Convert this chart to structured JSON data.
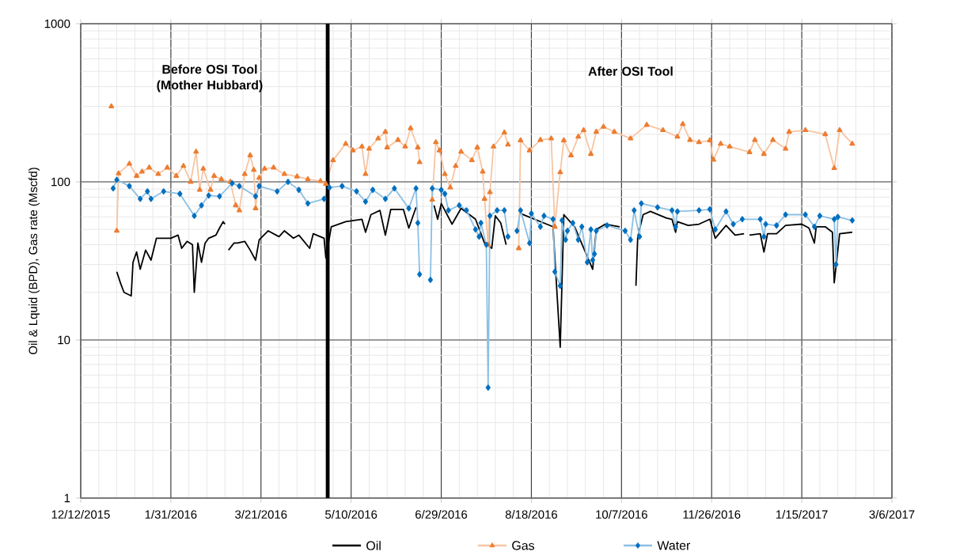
{
  "chart_data": {
    "type": "line",
    "ylabel": "Oil & Lquid (BPD), Gas rate (Mscfd)",
    "log": "y",
    "grid": true,
    "legend": "bottom",
    "xlim": [
      "2015-12-12",
      "2017-03-06"
    ],
    "xticks": [
      {
        "value": "2015-12-12",
        "label": "12/12/2015"
      },
      {
        "value": "2016-01-31",
        "label": "1/31/2016"
      },
      {
        "value": "2016-03-21",
        "label": "3/21/2016"
      },
      {
        "value": "2016-05-10",
        "label": "5/10/2016"
      },
      {
        "value": "2016-06-29",
        "label": "6/29/2016"
      },
      {
        "value": "2016-08-18",
        "label": "8/18/2016"
      },
      {
        "value": "2016-10-07",
        "label": "10/7/2016"
      },
      {
        "value": "2016-11-26",
        "label": "11/26/2016"
      },
      {
        "value": "2017-01-15",
        "label": "1/15/2017"
      },
      {
        "value": "2017-03-06",
        "label": "3/6/2017"
      }
    ],
    "ylim": [
      1,
      1000
    ],
    "yticks": [
      1,
      10,
      100,
      1000
    ],
    "ref_lines": [
      {
        "axis": "x",
        "value": "2016-04-27",
        "color": "#000000"
      }
    ],
    "annotations": [
      "Before OSI Tool (Mother Hubbard)",
      "After OSI Tool"
    ],
    "series": [
      {
        "name": "Oil",
        "color": "#000000",
        "marker": "none",
        "x": [
          "2016-01-01",
          "2016-01-03",
          "2016-01-05",
          "2016-01-09",
          "2016-01-10",
          "2016-01-12",
          "2016-01-14",
          "2016-01-17",
          "2016-01-20",
          "2016-01-23",
          "2016-01-31",
          "2016-02-04",
          "2016-02-06",
          "2016-02-09",
          "2016-02-12",
          "2016-02-13",
          "2016-02-15",
          "2016-02-17",
          "2016-02-19",
          "2016-02-21",
          "2016-02-25",
          "2016-02-27",
          "2016-02-29",
          "2016-03-01",
          "2016-03-02",
          "2016-03-03",
          "2016-03-06",
          "2016-03-08",
          "2016-03-12",
          "2016-03-15",
          "2016-03-18",
          "2016-03-20",
          "2016-03-25",
          "2016-03-31",
          "2016-04-03",
          "2016-04-08",
          "2016-04-11",
          "2016-04-17",
          "2016-04-19",
          "2016-04-25",
          "2016-04-26",
          "2016-04-29",
          "2016-05-07",
          "2016-05-16",
          "2016-05-18",
          "2016-05-21",
          "2016-05-26",
          "2016-05-29",
          "2016-06-01",
          "2016-06-08",
          "2016-06-11",
          "2016-06-15",
          "2016-06-20",
          "2016-06-25",
          "2016-06-27",
          "2016-06-29",
          "2016-07-05",
          "2016-07-10",
          "2016-07-18",
          "2016-07-23",
          "2016-07-27",
          "2016-07-29",
          "2016-08-01",
          "2016-08-04",
          "2016-08-08",
          "2016-08-12",
          "2016-08-30",
          "2016-09-03",
          "2016-09-05",
          "2016-09-11",
          "2016-09-21",
          "2016-09-23",
          "2016-09-28",
          "2016-10-06",
          "2016-10-10",
          "2016-10-15",
          "2016-10-16",
          "2016-10-19",
          "2016-10-23",
          "2016-11-01",
          "2016-11-04",
          "2016-11-06",
          "2016-11-07",
          "2016-11-13",
          "2016-11-19",
          "2016-11-25",
          "2016-11-28",
          "2016-12-04",
          "2016-12-09",
          "2016-12-14",
          "2016-12-15",
          "2016-12-17",
          "2016-12-23",
          "2016-12-25",
          "2016-12-27",
          "2017-01-01",
          "2017-01-06",
          "2017-01-15",
          "2017-01-19",
          "2017-01-22",
          "2017-01-23",
          "2017-01-28",
          "2017-02-01",
          "2017-02-02",
          "2017-02-05",
          "2017-02-12"
        ],
        "values": [
          27,
          23,
          20,
          19,
          31,
          36,
          28,
          37,
          32,
          44,
          44,
          46,
          38,
          42,
          40,
          20,
          41,
          31,
          41,
          44,
          46,
          51,
          56,
          54,
          null,
          37,
          41,
          41,
          42,
          37,
          32,
          43,
          49,
          45,
          49,
          44,
          46,
          38,
          47,
          44,
          33,
          52,
          56,
          58,
          48,
          62,
          66,
          46,
          67,
          67,
          51,
          69,
          null,
          71,
          58,
          73,
          54,
          68,
          58,
          41,
          38,
          61,
          55,
          40,
          null,
          63,
          52,
          9,
          62,
          52,
          28,
          50,
          54,
          52,
          null,
          22,
          45,
          62,
          65,
          59,
          58,
          48,
          56,
          53,
          54,
          58,
          44,
          53,
          46,
          47,
          null,
          46,
          47,
          36,
          47,
          47,
          53,
          54,
          51,
          41,
          52,
          52,
          48,
          23,
          47,
          48
        ]
      },
      {
        "name": "Gas",
        "color": "#ed7d31",
        "marker": "triangle",
        "x": [
          "2015-12-29",
          "2015-12-31",
          "2016-01-01",
          "2016-01-02",
          "2016-01-08",
          "2016-01-12",
          "2016-01-15",
          "2016-01-19",
          "2016-01-24",
          "2016-01-29",
          "2016-02-03",
          "2016-02-07",
          "2016-02-11",
          "2016-02-14",
          "2016-02-16",
          "2016-02-18",
          "2016-02-22",
          "2016-02-24",
          "2016-02-28",
          "2016-03-04",
          "2016-03-07",
          "2016-03-09",
          "2016-03-12",
          "2016-03-15",
          "2016-03-17",
          "2016-03-18",
          "2016-03-20",
          "2016-03-23",
          "2016-03-28",
          "2016-04-03",
          "2016-04-10",
          "2016-04-16",
          "2016-04-23",
          "2016-04-26",
          "2016-04-30",
          "2016-05-07",
          "2016-05-11",
          "2016-05-16",
          "2016-05-18",
          "2016-05-20",
          "2016-05-25",
          "2016-05-29",
          "2016-05-30",
          "2016-06-05",
          "2016-06-09",
          "2016-06-12",
          "2016-06-16",
          "2016-06-17",
          "2016-06-20",
          "2016-06-24",
          "2016-06-26",
          "2016-06-28",
          "2016-07-01",
          "2016-07-04",
          "2016-07-07",
          "2016-07-10",
          "2016-07-16",
          "2016-07-19",
          "2016-07-22",
          "2016-07-23",
          "2016-07-25",
          "2016-07-26",
          "2016-07-28",
          "2016-08-03",
          "2016-08-05",
          "2016-08-08",
          "2016-08-11",
          "2016-08-12",
          "2016-08-17",
          "2016-08-23",
          "2016-08-29",
          "2016-08-31",
          "2016-09-03",
          "2016-09-05",
          "2016-09-09",
          "2016-09-13",
          "2016-09-16",
          "2016-09-20",
          "2016-09-23",
          "2016-09-27",
          "2016-10-03",
          "2016-10-12",
          "2016-10-21",
          "2016-10-30",
          "2016-11-07",
          "2016-11-10",
          "2016-11-14",
          "2016-11-19",
          "2016-11-25",
          "2016-11-27",
          "2016-12-01",
          "2016-12-06",
          "2016-12-17",
          "2016-12-20",
          "2016-12-25",
          "2016-12-30",
          "2017-01-06",
          "2017-01-08",
          "2017-01-17",
          "2017-01-28",
          "2017-02-02",
          "2017-02-05",
          "2017-02-12"
        ],
        "values": [
          300,
          null,
          49,
          113,
          130,
          109,
          116,
          123,
          112,
          123,
          109,
          126,
          100,
          155,
          89,
          121,
          89,
          109,
          104,
          100,
          71,
          66,
          112,
          147,
          119,
          68,
          106,
          121,
          123,
          112,
          108,
          104,
          101,
          97,
          137,
          174,
          158,
          167,
          112,
          162,
          188,
          207,
          165,
          184,
          167,
          218,
          165,
          133,
          null,
          77,
          178,
          158,
          112,
          92,
          126,
          155,
          137,
          165,
          116,
          78,
          40,
          86,
          167,
          205,
          172,
          null,
          38,
          183,
          158,
          184,
          188,
          52,
          115,
          183,
          147,
          193,
          212,
          150,
          207,
          223,
          207,
          188,
          229,
          212,
          193,
          232,
          184,
          178,
          183,
          138,
          174,
          167,
          154,
          184,
          150,
          184,
          162,
          207,
          212,
          200,
          122,
          212,
          174
        ]
      },
      {
        "name": "Water",
        "color": "#0070c0",
        "marker": "diamond",
        "x": [
          "2015-12-30",
          "2016-01-01",
          "2016-01-08",
          "2016-01-14",
          "2016-01-18",
          "2016-01-20",
          "2016-01-27",
          "2016-02-05",
          "2016-02-13",
          "2016-02-17",
          "2016-02-21",
          "2016-02-27",
          "2016-03-05",
          "2016-03-09",
          "2016-03-18",
          "2016-03-20",
          "2016-03-30",
          "2016-04-05",
          "2016-04-11",
          "2016-04-16",
          "2016-04-25",
          "2016-04-28",
          "2016-05-05",
          "2016-05-13",
          "2016-05-18",
          "2016-05-22",
          "2016-05-29",
          "2016-06-03",
          "2016-06-11",
          "2016-06-15",
          "2016-06-16",
          "2016-06-17",
          "2016-06-20",
          "2016-06-23",
          "2016-06-24",
          "2016-06-29",
          "2016-07-01",
          "2016-07-03",
          "2016-07-09",
          "2016-07-13",
          "2016-07-18",
          "2016-07-20",
          "2016-07-21",
          "2016-07-24",
          "2016-07-25",
          "2016-07-26",
          "2016-07-30",
          "2016-08-03",
          "2016-08-05",
          "2016-08-08",
          "2016-08-10",
          "2016-08-12",
          "2016-08-17",
          "2016-08-18",
          "2016-08-23",
          "2016-08-25",
          "2016-08-30",
          "2016-08-31",
          "2016-09-03",
          "2016-09-04",
          "2016-09-06",
          "2016-09-07",
          "2016-09-10",
          "2016-09-13",
          "2016-09-15",
          "2016-09-18",
          "2016-09-20",
          "2016-09-21",
          "2016-09-22",
          "2016-09-23",
          "2016-09-29",
          "2016-10-09",
          "2016-10-12",
          "2016-10-14",
          "2016-10-17",
          "2016-10-18",
          "2016-10-27",
          "2016-11-04",
          "2016-11-06",
          "2016-11-07",
          "2016-11-19",
          "2016-11-25",
          "2016-11-28",
          "2016-12-04",
          "2016-12-08",
          "2016-12-13",
          "2016-12-23",
          "2016-12-25",
          "2016-12-26",
          "2017-01-01",
          "2017-01-06",
          "2017-01-17",
          "2017-01-22",
          "2017-01-25",
          "2017-02-02",
          "2017-02-03",
          "2017-02-04",
          "2017-02-12"
        ],
        "values": [
          91,
          103,
          94,
          78,
          87,
          78,
          87,
          84,
          61,
          71,
          82,
          81,
          98,
          94,
          81,
          94,
          87,
          100,
          89,
          73,
          78,
          92,
          94,
          87,
          75,
          89,
          78,
          91,
          68,
          91,
          55,
          26,
          null,
          24,
          91,
          89,
          84,
          66,
          71,
          66,
          50,
          45,
          55,
          40,
          5,
          61,
          66,
          66,
          45,
          null,
          49,
          66,
          41,
          63,
          52,
          61,
          58,
          27,
          22,
          57,
          43,
          49,
          55,
          43,
          52,
          31,
          50,
          32,
          35,
          49,
          53,
          49,
          43,
          66,
          45,
          73,
          69,
          66,
          52,
          65,
          66,
          67,
          50,
          65,
          54,
          58,
          58,
          45,
          54,
          53,
          62,
          62,
          52,
          61,
          58,
          30,
          60,
          57
        ]
      }
    ]
  }
}
